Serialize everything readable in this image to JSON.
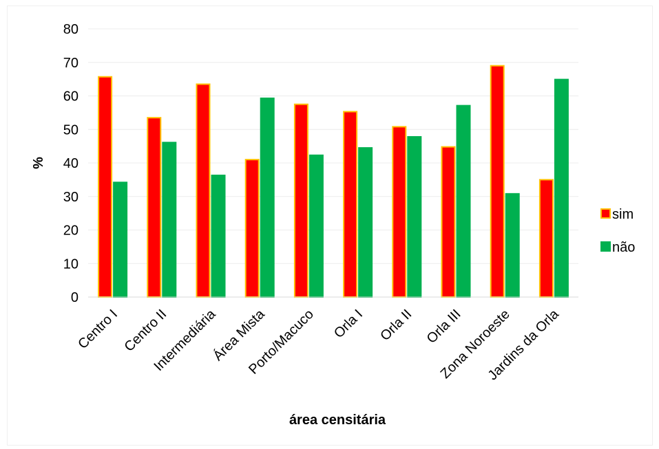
{
  "chart_data": {
    "type": "bar",
    "title": "",
    "xlabel": "área censitária",
    "ylabel": "%",
    "ylim": [
      0,
      80
    ],
    "yticks": [
      0,
      10,
      20,
      30,
      40,
      50,
      60,
      70,
      80
    ],
    "grid": true,
    "legend_position": "right",
    "categories": [
      "Centro I",
      "Centro II",
      "Intermediária",
      "Área Mista",
      "Porto/Macuco",
      "Orla I",
      "Orla II",
      "Orla III",
      "Zona Noroeste",
      "Jardins da Orla"
    ],
    "series": [
      {
        "name": "sim",
        "values": [
          65.7,
          53.5,
          63.5,
          41.0,
          57.5,
          55.3,
          50.8,
          44.8,
          69.0,
          35.0
        ],
        "color": "#ff0000",
        "border": "#ffc000"
      },
      {
        "name": "não",
        "values": [
          34.2,
          46.1,
          36.3,
          59.3,
          42.3,
          44.5,
          47.8,
          57.1,
          30.8,
          64.9
        ],
        "color": "#00b050",
        "border": "#00b050"
      }
    ]
  }
}
